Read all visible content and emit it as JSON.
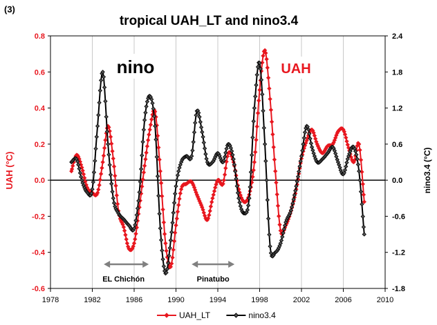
{
  "panel_label": "(3)",
  "chart_data": {
    "type": "line",
    "title": "tropical UAH_LT  and nino3.4",
    "xlabel": "",
    "ylabel_left": "UAH (°C)",
    "ylabel_right": "nino3.4 (°C)",
    "xlim": [
      1978,
      2010
    ],
    "ylim_left": [
      -0.6,
      0.8
    ],
    "ylim_right": [
      -1.8,
      2.4
    ],
    "x_ticks": [
      "1978",
      "1982",
      "1986",
      "1990",
      "1994",
      "1998",
      "2002",
      "2006",
      "2010"
    ],
    "y_ticks_left": [
      "-0.6",
      "-0.4",
      "-0.2",
      "0.0",
      "0.2",
      "0.4",
      "0.6",
      "0.8"
    ],
    "y_ticks_right": [
      "-1.8",
      "-1.2",
      "-0.6",
      "0.0",
      "0.6",
      "1.2",
      "1.8",
      "2.4"
    ],
    "grid": "vertical",
    "legend_position": "bottom",
    "series": [
      {
        "name": "UAH_LT",
        "axis": "left",
        "color": "#e8171f",
        "marker": "diamond",
        "x": [
          1980.0,
          1980.5,
          1981.0,
          1981.5,
          1982.0,
          1982.5,
          1983.0,
          1983.5,
          1984.0,
          1984.5,
          1985.0,
          1985.5,
          1986.0,
          1986.5,
          1987.0,
          1987.5,
          1988.0,
          1988.5,
          1989.0,
          1989.5,
          1990.0,
          1990.5,
          1991.0,
          1991.5,
          1992.0,
          1992.5,
          1993.0,
          1993.5,
          1994.0,
          1994.5,
          1995.0,
          1995.5,
          1996.0,
          1996.5,
          1997.0,
          1997.5,
          1998.0,
          1998.5,
          1999.0,
          1999.5,
          2000.0,
          2000.5,
          2001.0,
          2001.5,
          2002.0,
          2002.5,
          2003.0,
          2003.5,
          2004.0,
          2004.5,
          2005.0,
          2005.5,
          2006.0,
          2006.5,
          2007.0,
          2007.5,
          2008.0
        ],
        "values": [
          0.05,
          0.14,
          0.07,
          -0.04,
          -0.07,
          -0.07,
          0.1,
          0.3,
          0.12,
          -0.17,
          -0.26,
          -0.38,
          -0.35,
          -0.15,
          0.08,
          0.28,
          0.38,
          0.05,
          -0.35,
          -0.48,
          -0.25,
          -0.05,
          -0.02,
          -0.01,
          -0.08,
          -0.15,
          -0.22,
          -0.1,
          0.0,
          -0.02,
          0.15,
          0.1,
          -0.05,
          -0.12,
          -0.08,
          0.1,
          0.5,
          0.72,
          0.45,
          0.05,
          -0.28,
          -0.25,
          -0.17,
          -0.05,
          0.12,
          0.22,
          0.28,
          0.2,
          0.15,
          0.19,
          0.2,
          0.27,
          0.28,
          0.18,
          0.1,
          0.2,
          -0.12
        ]
      },
      {
        "name": "nino3.4",
        "axis": "right",
        "color": "#000000",
        "marker": "diamond",
        "x": [
          1980.0,
          1980.5,
          1981.0,
          1981.5,
          1982.0,
          1982.5,
          1983.0,
          1983.5,
          1984.0,
          1984.5,
          1985.0,
          1985.5,
          1986.0,
          1986.5,
          1987.0,
          1987.5,
          1988.0,
          1988.5,
          1989.0,
          1989.5,
          1990.0,
          1990.5,
          1991.0,
          1991.5,
          1992.0,
          1992.5,
          1993.0,
          1993.5,
          1994.0,
          1994.5,
          1995.0,
          1995.5,
          1996.0,
          1996.5,
          1997.0,
          1997.5,
          1998.0,
          1998.5,
          1999.0,
          1999.5,
          2000.0,
          2000.5,
          2001.0,
          2001.5,
          2002.0,
          2002.5,
          2003.0,
          2003.5,
          2004.0,
          2004.5,
          2005.0,
          2005.5,
          2006.0,
          2006.5,
          2007.0,
          2007.5,
          2008.0
        ],
        "values": [
          0.3,
          0.35,
          0.0,
          -0.2,
          -0.15,
          0.9,
          1.8,
          0.6,
          -0.3,
          -0.55,
          -0.65,
          -0.75,
          -0.8,
          -0.2,
          1.0,
          1.4,
          0.9,
          -0.8,
          -1.55,
          -1.0,
          -0.1,
          0.3,
          0.4,
          0.4,
          1.15,
          0.8,
          0.3,
          0.3,
          0.45,
          0.3,
          0.6,
          0.35,
          -0.3,
          -0.55,
          -0.3,
          1.2,
          1.95,
          0.6,
          -1.1,
          -1.2,
          -1.05,
          -0.7,
          -0.5,
          -0.1,
          0.4,
          0.9,
          0.55,
          0.3,
          0.35,
          0.45,
          0.55,
          0.3,
          0.1,
          0.4,
          0.55,
          0.15,
          -0.9
        ]
      }
    ],
    "annotations": [
      {
        "text": "nino",
        "color": "#000000"
      },
      {
        "text": "UAH",
        "color": "#e8171f"
      },
      {
        "text": "EL Chichón",
        "arrow_x": [
          1983.1,
          1987.4
        ]
      },
      {
        "text": "Pinatubo",
        "arrow_x": [
          1991.5,
          1995.6
        ]
      }
    ]
  }
}
